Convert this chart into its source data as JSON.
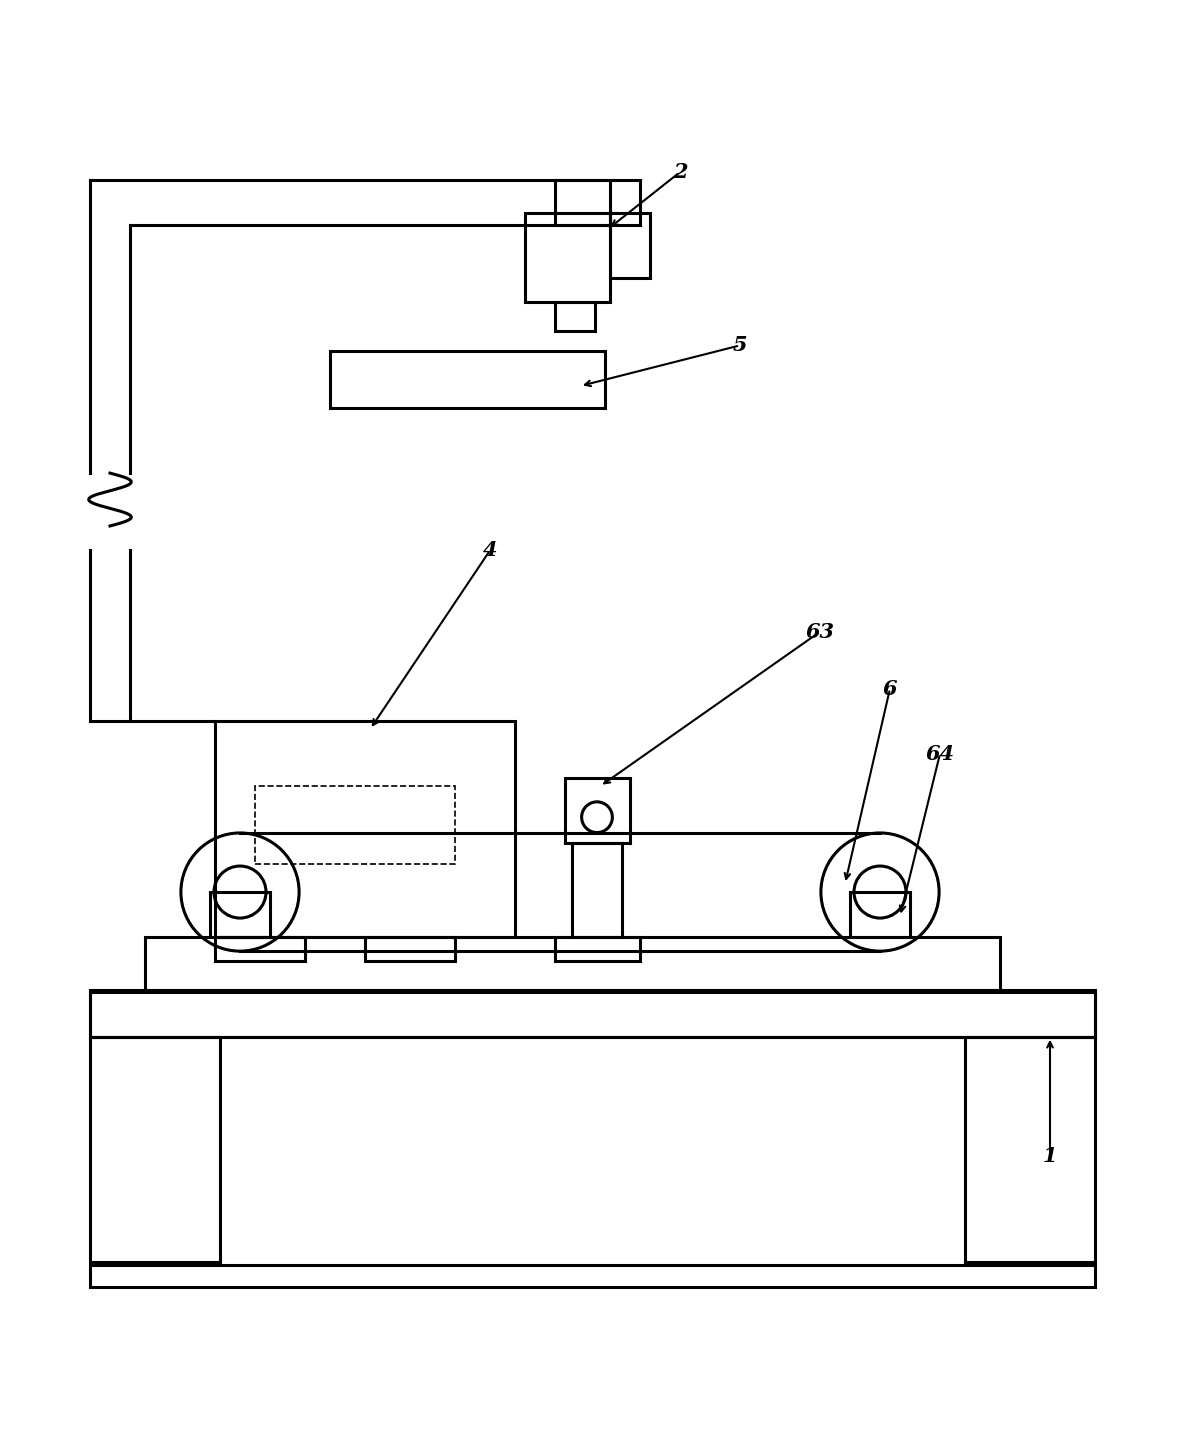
{
  "bg_color": "#ffffff",
  "line_color": "#000000",
  "lw": 2.2,
  "lw_thin": 1.2,
  "fig_width": 11.82,
  "fig_height": 14.53,
  "dpi": 100
}
